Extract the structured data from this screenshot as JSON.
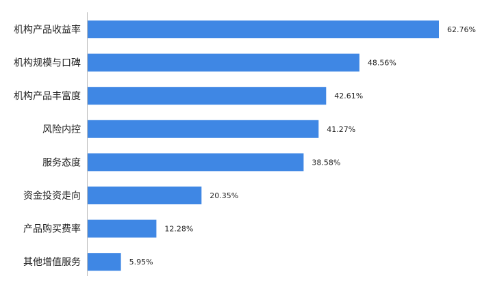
{
  "colors": {
    "bar": "#3f87e4",
    "axis": "#bfbfbf",
    "text": "#222222",
    "background": "#ffffff"
  },
  "chart_data": {
    "type": "bar",
    "orientation": "horizontal",
    "title": "",
    "xlabel": "",
    "ylabel": "",
    "value_format": "percent",
    "xlim": [
      0,
      70
    ],
    "grid": false,
    "legend": "none",
    "categories": [
      "机构产品收益率",
      "机构规模与口碑",
      "机构产品丰富度",
      "风险内控",
      "服务态度",
      "资金投资走向",
      "产品购买费率",
      "其他增值服务"
    ],
    "values": [
      62.76,
      48.56,
      42.61,
      41.27,
      38.58,
      20.35,
      12.28,
      5.95
    ],
    "value_labels": [
      "62.76%",
      "48.56%",
      "42.61%",
      "41.27%",
      "38.58%",
      "20.35%",
      "12.28%",
      "5.95%"
    ]
  }
}
